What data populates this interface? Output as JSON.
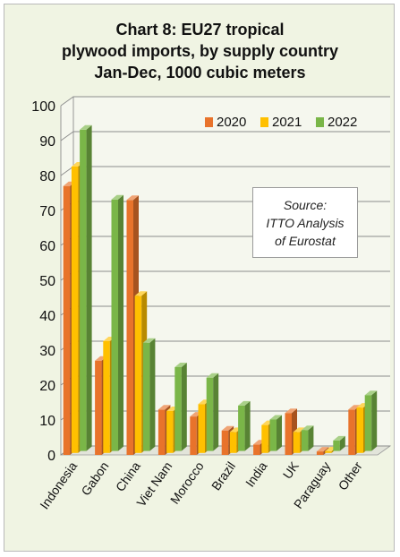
{
  "chart_data": {
    "type": "bar",
    "title_lines": [
      "Chart 8: EU27 tropical",
      "plywood imports, by supply country",
      "Jan-Dec, 1000 cubic meters"
    ],
    "categories": [
      "Indonesia",
      "Gabon",
      "China",
      "Viet Nam",
      "Morocco",
      "Brazil",
      "India",
      "UK",
      "Paraguay",
      "Other"
    ],
    "series": [
      {
        "name": "2020",
        "values": [
          77,
          27,
          73,
          13,
          11,
          7,
          3,
          12,
          1,
          13
        ],
        "color": "#e8732b"
      },
      {
        "name": "2021",
        "values": [
          82,
          32,
          45,
          12,
          14,
          6,
          8,
          6,
          0.5,
          13
        ],
        "color": "#ffc000"
      },
      {
        "name": "2022",
        "values": [
          92,
          72,
          31,
          24,
          21,
          13,
          9,
          6,
          3,
          16
        ],
        "color": "#7ab648"
      }
    ],
    "ylim": [
      0,
      100
    ],
    "yticks": [
      0,
      10,
      20,
      30,
      40,
      50,
      60,
      70,
      80,
      90,
      100
    ],
    "grid": true,
    "legend_position": "top-right",
    "annotation_lines": [
      "Source:",
      "ITTO Analysis",
      "of Eurostat"
    ]
  }
}
